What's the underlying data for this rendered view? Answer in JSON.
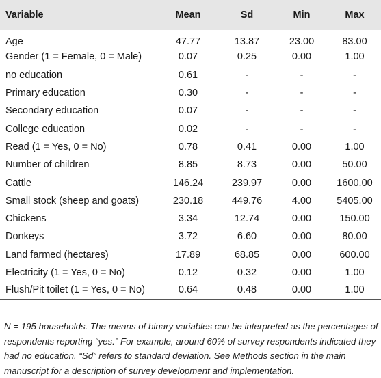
{
  "table": {
    "headers": [
      "Variable",
      "Mean",
      "Sd",
      "Min",
      "Max"
    ],
    "rows": [
      [
        "Age",
        "47.77",
        "13.87",
        "23.00",
        "83.00"
      ],
      [
        "Gender (1 = Female, 0 = Male)",
        "0.07",
        "0.25",
        "0.00",
        "1.00"
      ],
      [
        "no education",
        "0.61",
        "-",
        "-",
        "-"
      ],
      [
        "Primary education",
        "0.30",
        "-",
        "-",
        "-"
      ],
      [
        "Secondary education",
        "0.07",
        "-",
        "-",
        "-"
      ],
      [
        "College education",
        "0.02",
        "-",
        "-",
        "-"
      ],
      [
        "Read (1 = Yes, 0 = No)",
        "0.78",
        "0.41",
        "0.00",
        "1.00"
      ],
      [
        "Number of children",
        "8.85",
        "8.73",
        "0.00",
        "50.00"
      ],
      [
        "Cattle",
        "146.24",
        "239.97",
        "0.00",
        "1600.00"
      ],
      [
        "Small stock (sheep and goats)",
        "230.18",
        "449.76",
        "4.00",
        "5405.00"
      ],
      [
        "Chickens",
        "3.34",
        "12.74",
        "0.00",
        "150.00"
      ],
      [
        "Donkeys",
        "3.72",
        "6.60",
        "0.00",
        "80.00"
      ],
      [
        "Land farmed (hectares)",
        "17.89",
        "68.85",
        "0.00",
        "600.00"
      ],
      [
        "Electricity (1 = Yes, 0 = No)",
        "0.12",
        "0.32",
        "0.00",
        "1.00"
      ],
      [
        "Flush/Pit toilet (1 = Yes, 0 = No)",
        "0.64",
        "0.48",
        "0.00",
        "1.00"
      ]
    ]
  },
  "footnote": "N = 195 households. The means of binary variables can be interpreted as the percentages of respondents reporting “yes.” For example, around 60% of survey respondents indicated they had no education. “Sd” refers to standard deviation. See Methods section in the main manuscript for a description of survey development and implementation."
}
